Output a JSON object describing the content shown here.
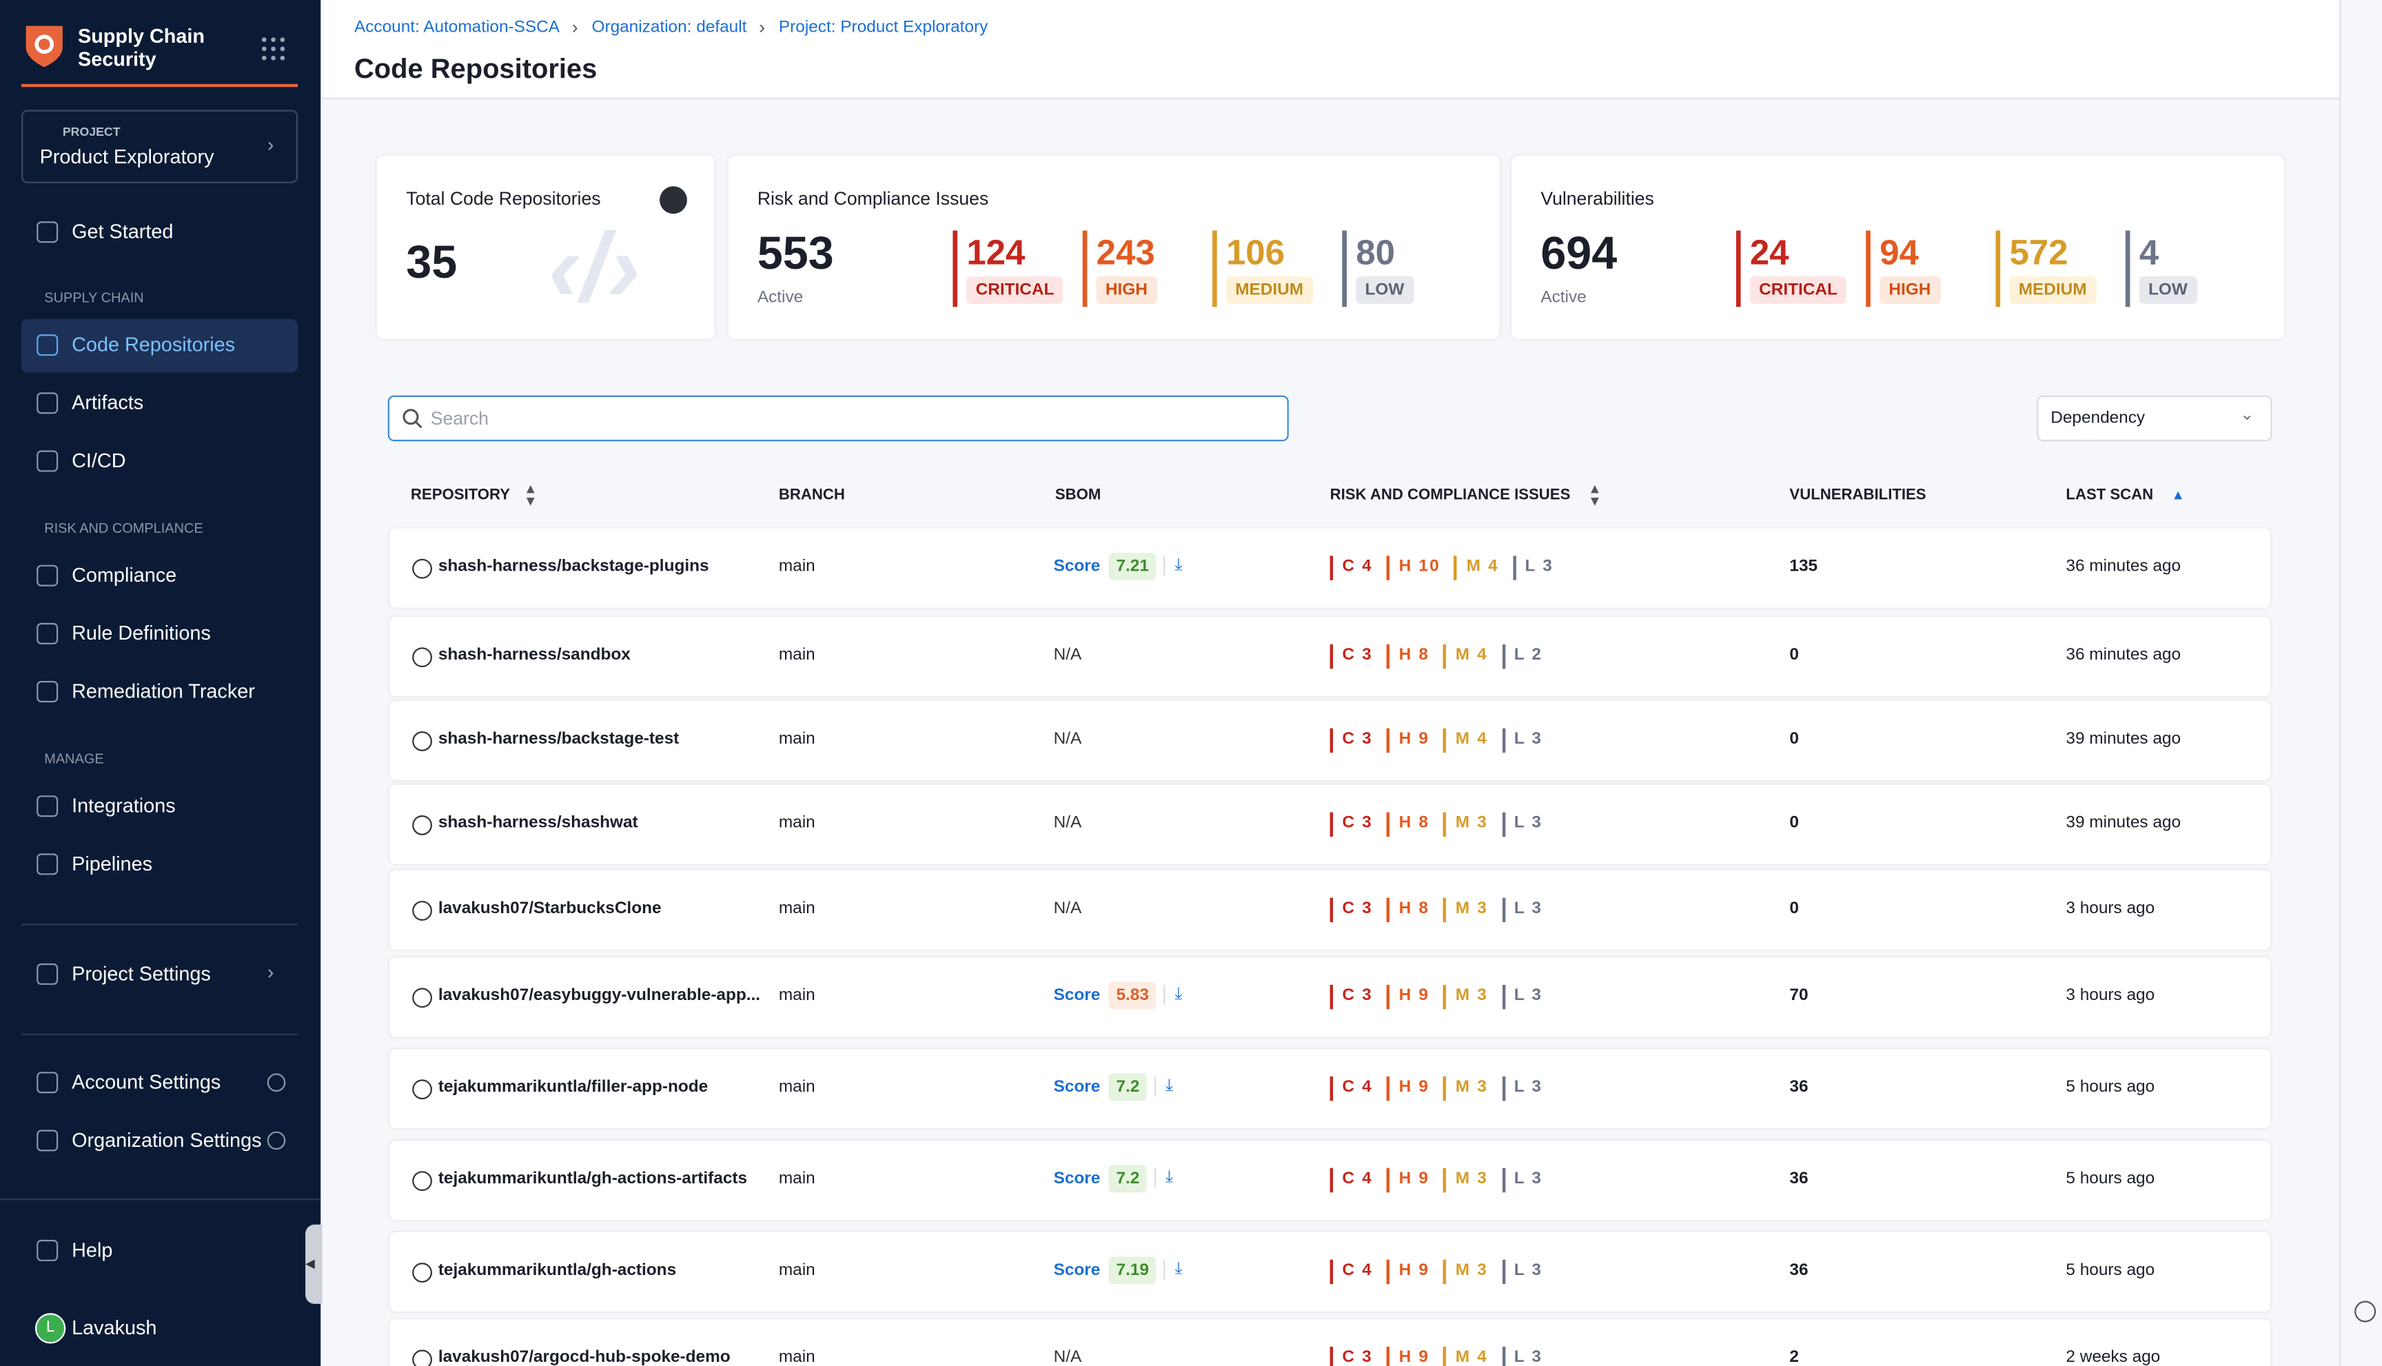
{
  "sidebar": {
    "app_name_line1": "Supply Chain",
    "app_name_line2": "Security",
    "project_label": "PROJECT",
    "project_name": "Product Exploratory",
    "nav": [
      {
        "type": "item",
        "label": "Get Started"
      },
      {
        "type": "section",
        "label": "SUPPLY CHAIN"
      },
      {
        "type": "item",
        "label": "Code Repositories",
        "active": true
      },
      {
        "type": "item",
        "label": "Artifacts"
      },
      {
        "type": "item",
        "label": "CI/CD"
      },
      {
        "type": "section",
        "label": "RISK AND COMPLIANCE"
      },
      {
        "type": "item",
        "label": "Compliance"
      },
      {
        "type": "item",
        "label": "Rule Definitions"
      },
      {
        "type": "item",
        "label": "Remediation Tracker"
      },
      {
        "type": "section",
        "label": "MANAGE"
      },
      {
        "type": "item",
        "label": "Integrations"
      },
      {
        "type": "item",
        "label": "Pipelines"
      },
      {
        "type": "item",
        "label": "Project Settings"
      },
      {
        "type": "item",
        "label": "Account Settings"
      },
      {
        "type": "item",
        "label": "Organization Settings"
      }
    ],
    "help": "Help",
    "user_initial": "L",
    "user_name": "Lavakush"
  },
  "header": {
    "breadcrumbs": [
      "Account: Automation-SSCA",
      "Organization: default",
      "Project: Product Exploratory"
    ],
    "title": "Code Repositories"
  },
  "cards": {
    "total": {
      "title": "Total Code Repositories",
      "value": 35
    },
    "risk": {
      "title": "Risk and Compliance Issues",
      "total": 553,
      "total_label": "Active",
      "levels": [
        {
          "count": 124,
          "label": "CRITICAL"
        },
        {
          "count": 243,
          "label": "HIGH"
        },
        {
          "count": 106,
          "label": "MEDIUM"
        },
        {
          "count": 80,
          "label": "LOW"
        }
      ]
    },
    "vulnerabilities": {
      "title": "Vulnerabilities",
      "total": 694,
      "total_label": "Active",
      "levels": [
        {
          "count": 24,
          "label": "CRITICAL"
        },
        {
          "count": 94,
          "label": "HIGH"
        },
        {
          "count": 572,
          "label": "MEDIUM"
        },
        {
          "count": 4,
          "label": "LOW"
        }
      ]
    }
  },
  "toolbar": {
    "search_placeholder": "Search",
    "filter": "Dependency"
  },
  "table": {
    "columns": [
      "REPOSITORY",
      "BRANCH",
      "SBOM",
      "RISK AND COMPLIANCE ISSUES",
      "VULNERABILITIES",
      "LAST SCAN"
    ],
    "rows": [
      {
        "repository": "shash-harness/backstage-plugins",
        "branch": "main",
        "sbom": {
          "label": "Score",
          "score": 7.21
        },
        "risk": [
          "C 4",
          "H 10",
          "M 4",
          "L 3"
        ],
        "vulnerabilities": 135,
        "last_scan": "36 minutes ago"
      },
      {
        "repository": "shash-harness/sandbox",
        "branch": "main",
        "sbom": "N/A",
        "risk": [
          "C 3",
          "H 8",
          "M 4",
          "L 2"
        ],
        "vulnerabilities": 0,
        "last_scan": "36 minutes ago"
      },
      {
        "repository": "shash-harness/backstage-test",
        "branch": "main",
        "sbom": "N/A",
        "risk": [
          "C 3",
          "H 9",
          "M 4",
          "L 3"
        ],
        "vulnerabilities": 0,
        "last_scan": "39 minutes ago"
      },
      {
        "repository": "shash-harness/shashwat",
        "branch": "main",
        "sbom": "N/A",
        "risk": [
          "C 3",
          "H 8",
          "M 3",
          "L 3"
        ],
        "vulnerabilities": 0,
        "last_scan": "39 minutes ago"
      },
      {
        "repository": "lavakush07/StarbucksClone",
        "branch": "main",
        "sbom": "N/A",
        "risk": [
          "C 3",
          "H 8",
          "M 3",
          "L 3"
        ],
        "vulnerabilities": 0,
        "last_scan": "3 hours ago"
      },
      {
        "repository": "lavakush07/easybuggy-vulnerable-app...",
        "branch": "main",
        "sbom": {
          "label": "Score",
          "score": 5.83
        },
        "risk": [
          "C 3",
          "H 9",
          "M 3",
          "L 3"
        ],
        "vulnerabilities": 70,
        "last_scan": "3 hours ago"
      },
      {
        "repository": "tejakummarikuntla/filler-app-node",
        "branch": "main",
        "sbom": {
          "label": "Score",
          "score": 7.2
        },
        "risk": [
          "C 4",
          "H 9",
          "M 3",
          "L 3"
        ],
        "vulnerabilities": 36,
        "last_scan": "5 hours ago"
      },
      {
        "repository": "tejakummarikuntla/gh-actions-artifacts",
        "branch": "main",
        "sbom": {
          "label": "Score",
          "score": 7.2
        },
        "risk": [
          "C 4",
          "H 9",
          "M 3",
          "L 3"
        ],
        "vulnerabilities": 36,
        "last_scan": "5 hours ago"
      },
      {
        "repository": "tejakummarikuntla/gh-actions",
        "branch": "main",
        "sbom": {
          "label": "Score",
          "score": 7.19
        },
        "risk": [
          "C 4",
          "H 9",
          "M 3",
          "L 3"
        ],
        "vulnerabilities": 36,
        "last_scan": "5 hours ago"
      },
      {
        "repository": "lavakush07/argocd-hub-spoke-demo",
        "branch": "main",
        "sbom": "N/A",
        "risk": [
          "C 3",
          "H 9",
          "M 4",
          "L 3"
        ],
        "vulnerabilities": 2,
        "last_scan": "2 weeks ago"
      }
    ]
  }
}
